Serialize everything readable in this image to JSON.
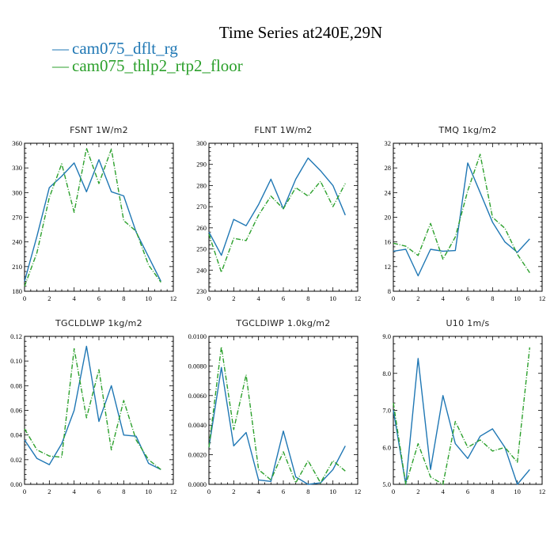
{
  "figure": {
    "title": "Time Series at240E,29N",
    "legend": [
      {
        "marker": "—",
        "name": "cam075_dflt_rg",
        "color": "#1f77b4"
      },
      {
        "marker": "—",
        "name": "cam075_thlp2_rtp2_floor",
        "color": "#2ca02c"
      }
    ]
  },
  "chart_data": [
    {
      "type": "line",
      "title": "FSNT   1W/m2",
      "x": [
        0,
        1,
        2,
        3,
        4,
        5,
        6,
        7,
        8,
        9,
        10,
        11
      ],
      "xlim": [
        0,
        12
      ],
      "xticks": [
        "0",
        "2",
        "4",
        "6",
        "8",
        "10",
        "12"
      ],
      "ylim": [
        180,
        360
      ],
      "yticks": [
        "180",
        "210",
        "240",
        "270",
        "300",
        "330",
        "360"
      ],
      "series": [
        {
          "name": "cam075_dflt_rg",
          "color": "#1f77b4",
          "dash": "",
          "values": [
            192,
            247,
            306,
            320,
            336,
            301,
            340,
            301,
            296,
            252,
            222,
            192
          ]
        },
        {
          "name": "cam075_thlp2_rtp2_floor",
          "color": "#2ca02c",
          "dash": "6,2,1,2",
          "values": [
            186,
            227,
            294,
            335,
            276,
            354,
            311,
            353,
            266,
            253,
            212,
            191
          ]
        }
      ]
    },
    {
      "type": "line",
      "title": "FLNT   1W/m2",
      "x": [
        0,
        1,
        2,
        3,
        4,
        5,
        6,
        7,
        8,
        9,
        10,
        11
      ],
      "xlim": [
        0,
        12
      ],
      "xticks": [
        "0",
        "2",
        "4",
        "6",
        "8",
        "10",
        "12"
      ],
      "ylim": [
        230,
        300
      ],
      "yticks": [
        "230",
        "240",
        "250",
        "260",
        "270",
        "280",
        "290",
        "300"
      ],
      "series": [
        {
          "name": "cam075_dflt_rg",
          "color": "#1f77b4",
          "dash": "",
          "values": [
            258,
            247,
            264,
            261,
            271,
            283,
            269,
            283,
            293,
            287,
            280,
            266
          ]
        },
        {
          "name": "cam075_thlp2_rtp2_floor",
          "color": "#2ca02c",
          "dash": "6,2,1,2",
          "values": [
            257,
            239,
            255,
            254,
            266,
            275,
            269,
            279,
            275,
            282,
            270,
            281
          ]
        }
      ]
    },
    {
      "type": "line",
      "title": "TMQ   1kg/m2",
      "x": [
        0,
        1,
        2,
        3,
        4,
        5,
        6,
        7,
        8,
        9,
        10,
        11
      ],
      "xlim": [
        0,
        12
      ],
      "xticks": [
        "0",
        "2",
        "4",
        "6",
        "8",
        "10",
        "12"
      ],
      "ylim": [
        8,
        32
      ],
      "yticks": [
        "8",
        "12",
        "16",
        "20",
        "24",
        "28",
        "32"
      ],
      "series": [
        {
          "name": "cam075_dflt_rg",
          "color": "#1f77b4",
          "dash": "",
          "values": [
            14.5,
            14.8,
            10.5,
            14.8,
            14.5,
            14.6,
            28.8,
            24.0,
            19.2,
            16.0,
            14.3,
            16.5
          ]
        },
        {
          "name": "cam075_thlp2_rtp2_floor",
          "color": "#2ca02c",
          "dash": "6,2,1,2",
          "values": [
            15.8,
            15.3,
            13.8,
            19.0,
            13.2,
            16.8,
            24.3,
            30.2,
            20.0,
            18.2,
            14.0,
            11.0
          ]
        }
      ]
    },
    {
      "type": "line",
      "title": "TGCLDLWP   1kg/m2",
      "x": [
        0,
        1,
        2,
        3,
        4,
        5,
        6,
        7,
        8,
        9,
        10,
        11
      ],
      "xlim": [
        0,
        12
      ],
      "xticks": [
        "0",
        "2",
        "4",
        "6",
        "8",
        "10",
        "12"
      ],
      "ylim": [
        0,
        0.12
      ],
      "yticks": [
        "0.00",
        "0.02",
        "0.04",
        "0.06",
        "0.08",
        "0.10",
        "0.12"
      ],
      "series": [
        {
          "name": "cam075_dflt_rg",
          "color": "#1f77b4",
          "dash": "",
          "values": [
            0.036,
            0.021,
            0.016,
            0.033,
            0.06,
            0.112,
            0.051,
            0.08,
            0.04,
            0.039,
            0.017,
            0.012
          ]
        },
        {
          "name": "cam075_thlp2_rtp2_floor",
          "color": "#2ca02c",
          "dash": "6,2,1,2",
          "values": [
            0.045,
            0.028,
            0.023,
            0.022,
            0.11,
            0.054,
            0.093,
            0.028,
            0.068,
            0.036,
            0.02,
            0.012
          ]
        }
      ]
    },
    {
      "type": "line",
      "title": "TGCLDIWP   1.0kg/m2",
      "x": [
        0,
        1,
        2,
        3,
        4,
        5,
        6,
        7,
        8,
        9,
        10,
        11
      ],
      "xlim": [
        0,
        12
      ],
      "xticks": [
        "0",
        "2",
        "4",
        "6",
        "8",
        "10",
        "12"
      ],
      "ylim": [
        0,
        0.01
      ],
      "yticks": [
        "0.0000",
        "0.0020",
        "0.0040",
        "0.0060",
        "0.0080",
        "0.0100"
      ],
      "series": [
        {
          "name": "cam075_dflt_rg",
          "color": "#1f77b4",
          "dash": "",
          "values": [
            0.0025,
            0.0079,
            0.0026,
            0.0035,
            0.0003,
            0.0002,
            0.0036,
            0.0005,
            0.0,
            0.0001,
            0.001,
            0.0026
          ]
        },
        {
          "name": "cam075_thlp2_rtp2_floor",
          "color": "#2ca02c",
          "dash": "6,2,1,2",
          "values": [
            0.0025,
            0.0093,
            0.0037,
            0.0074,
            0.001,
            0.0003,
            0.0022,
            0.0001,
            0.0016,
            0.0001,
            0.0016,
            0.0009
          ]
        }
      ]
    },
    {
      "type": "line",
      "title": "U10   1m/s",
      "x": [
        0,
        1,
        2,
        3,
        4,
        5,
        6,
        7,
        8,
        9,
        10,
        11
      ],
      "xlim": [
        0,
        12
      ],
      "xticks": [
        "0",
        "2",
        "4",
        "6",
        "8",
        "10",
        "12"
      ],
      "ylim": [
        5,
        9
      ],
      "yticks": [
        "5.0",
        "6.0",
        "7.0",
        "8.0",
        "9.0"
      ],
      "series": [
        {
          "name": "cam075_dflt_rg",
          "color": "#1f77b4",
          "dash": "",
          "values": [
            7.0,
            5.0,
            8.4,
            5.4,
            7.4,
            6.1,
            5.7,
            6.3,
            6.5,
            6.0,
            5.0,
            5.4
          ]
        },
        {
          "name": "cam075_thlp2_rtp2_floor",
          "color": "#2ca02c",
          "dash": "6,2,1,2",
          "values": [
            7.2,
            5.0,
            6.1,
            5.2,
            5.0,
            6.7,
            6.0,
            6.2,
            5.9,
            6.0,
            5.6,
            8.7
          ]
        }
      ]
    }
  ]
}
